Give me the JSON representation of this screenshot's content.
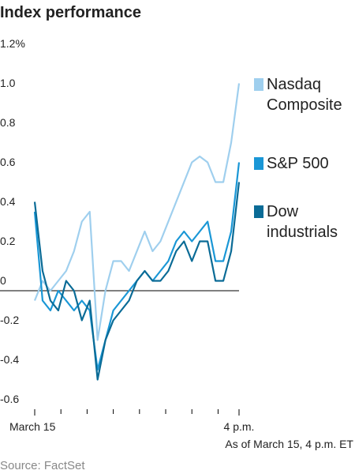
{
  "chart_data": {
    "type": "line",
    "title": "Index performance",
    "x": [
      0,
      15,
      30,
      45,
      60,
      75,
      90,
      105,
      120,
      135,
      150,
      165,
      180,
      195,
      210,
      225,
      240,
      255,
      270,
      285,
      300,
      315,
      330,
      345,
      360,
      375,
      390
    ],
    "xlim": [
      0,
      390
    ],
    "xticks": [
      {
        "value": 0,
        "label": "March 15"
      },
      {
        "value": 390,
        "label": "4 p.m."
      }
    ],
    "xminorticks": [
      50,
      100,
      150,
      200,
      250,
      300,
      350
    ],
    "ylim": [
      -0.6,
      1.2
    ],
    "yticks": [
      {
        "value": 1.2,
        "label": "1.2%"
      },
      {
        "value": 1,
        "label": "1.0"
      },
      0.8,
      0.6,
      0.4,
      0.2,
      0,
      -0.2,
      -0.4,
      -0.6
    ],
    "zero_line": true,
    "series": [
      {
        "name": "Nasdaq Composite",
        "color": "#9fcfee",
        "values": [
          -0.05,
          0.05,
          0.0,
          0.05,
          0.1,
          0.2,
          0.35,
          0.4,
          -0.25,
          0.0,
          0.15,
          0.15,
          0.1,
          0.2,
          0.3,
          0.2,
          0.25,
          0.35,
          0.45,
          0.55,
          0.65,
          0.68,
          0.65,
          0.55,
          0.55,
          0.75,
          1.05
        ]
      },
      {
        "name": "S&P 500",
        "color": "#1a97d6",
        "values": [
          0.4,
          -0.05,
          -0.1,
          0.0,
          -0.05,
          -0.1,
          -0.05,
          -0.1,
          -0.4,
          -0.25,
          -0.1,
          -0.05,
          0.0,
          0.05,
          0.1,
          0.05,
          0.1,
          0.15,
          0.25,
          0.3,
          0.25,
          0.3,
          0.35,
          0.15,
          0.15,
          0.3,
          0.65
        ]
      },
      {
        "name": "Dow industrials",
        "color": "#0a6b96",
        "values": [
          0.45,
          0.1,
          -0.05,
          -0.1,
          0.05,
          0.0,
          -0.15,
          -0.05,
          -0.45,
          -0.25,
          -0.15,
          -0.1,
          -0.05,
          0.05,
          0.1,
          0.05,
          0.05,
          0.1,
          0.2,
          0.25,
          0.15,
          0.25,
          0.25,
          0.05,
          0.05,
          0.2,
          0.55
        ]
      }
    ],
    "note": "As of March 15, 4 p.m. ET",
    "source": "Source: FactSet"
  }
}
